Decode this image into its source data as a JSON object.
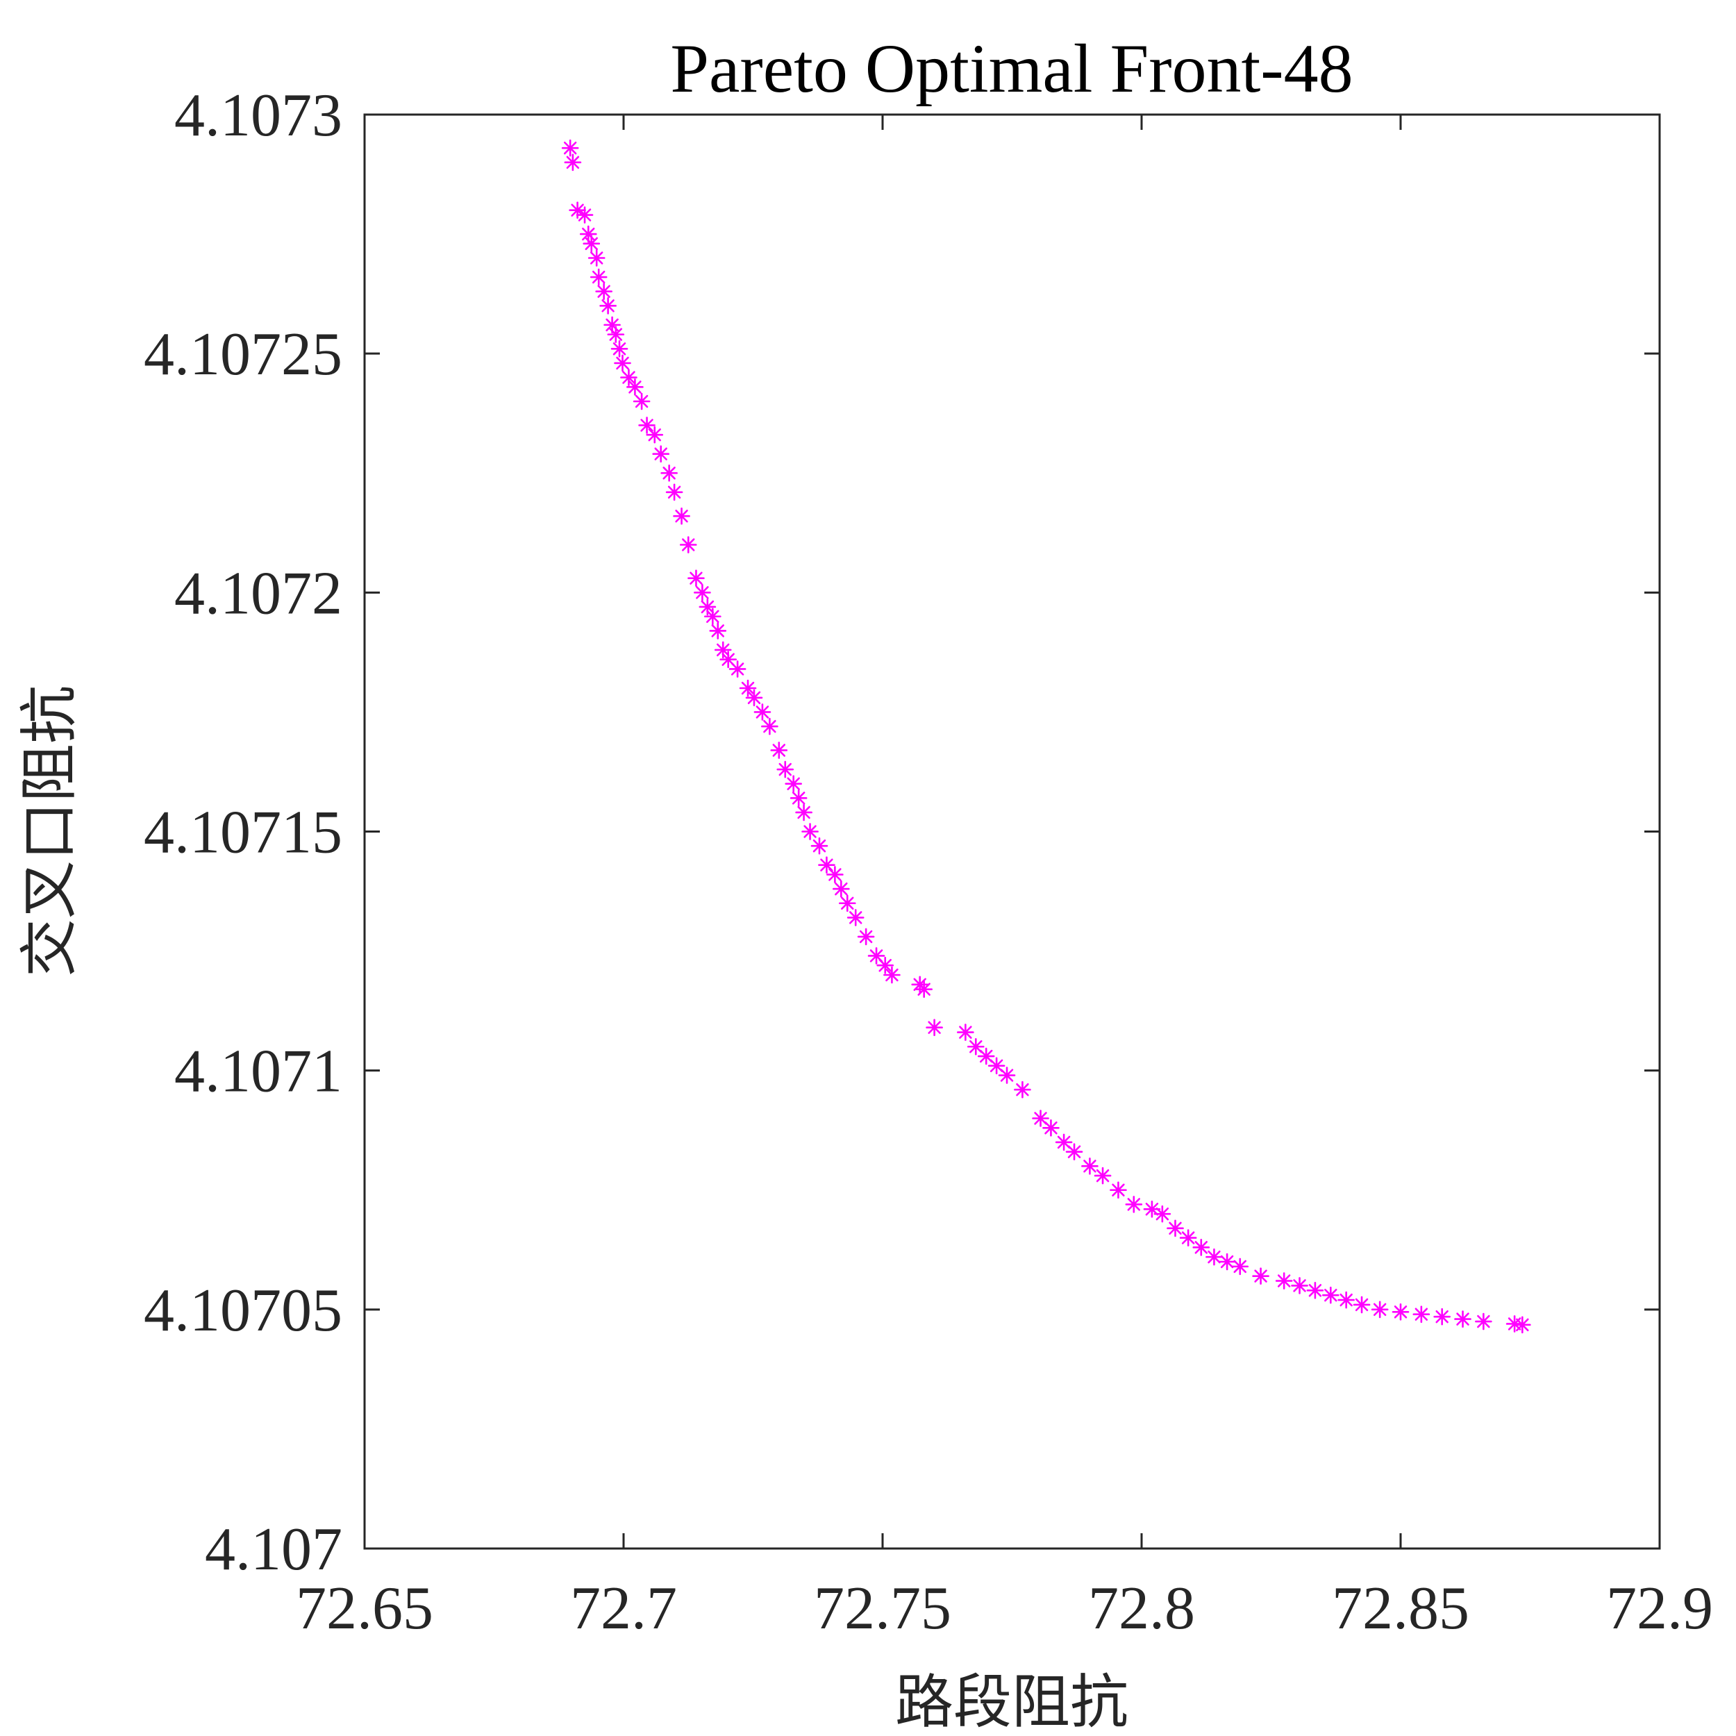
{
  "chart_data": {
    "type": "scatter",
    "title": "Pareto Optimal Front-48",
    "xlabel": "路段阻抗",
    "ylabel": "交叉口阻抗",
    "xlim": [
      72.65,
      72.9
    ],
    "ylim": [
      4.107,
      4.1073
    ],
    "xticks": [
      "72.65",
      "72.7",
      "72.75",
      "72.8",
      "72.85",
      "72.9"
    ],
    "yticks": [
      "4.107",
      "4.10705",
      "4.1071",
      "4.10715",
      "4.1072",
      "4.10725",
      "4.1073"
    ],
    "grid": false,
    "marker": "asterisk",
    "marker_color": "#ff00ff",
    "series": [
      {
        "x": [
          72.6897,
          72.6902,
          72.6911,
          72.6925,
          72.6932,
          72.6938,
          72.6948,
          72.6952,
          72.6962,
          72.697,
          72.6978,
          72.6985,
          72.6992,
          72.6998,
          72.701,
          72.7022,
          72.7035,
          72.7045,
          72.706,
          72.7072,
          72.7088,
          72.7098,
          72.7112,
          72.7125,
          72.714,
          72.7152,
          72.7162,
          72.7172,
          72.7182,
          72.7192,
          72.7202,
          72.722,
          72.724,
          72.7252,
          72.7268,
          72.7282,
          72.73,
          72.7312,
          72.7328,
          72.7338,
          72.7348,
          72.736,
          72.7378,
          72.7392,
          72.7408,
          72.742,
          72.7432,
          72.7448,
          72.7468,
          72.7488,
          72.7505,
          72.7518,
          72.7572,
          72.758,
          72.76,
          72.766,
          72.768,
          72.77,
          72.772,
          72.774,
          72.777,
          72.7805,
          72.7825,
          72.785,
          72.787,
          72.79,
          72.7925,
          72.7955,
          72.7985,
          72.802,
          72.804,
          72.8065,
          72.809,
          72.8115,
          72.814,
          72.8165,
          72.819,
          72.823,
          72.8275,
          72.8305,
          72.8335,
          72.8365,
          72.8395,
          72.8425,
          72.846,
          72.85,
          72.854,
          72.858,
          72.862,
          72.866,
          72.872,
          72.8735
        ],
        "y": [
          4.107293,
          4.10729,
          4.10728,
          4.107279,
          4.107275,
          4.107273,
          4.10727,
          4.107266,
          4.107263,
          4.10726,
          4.107256,
          4.107254,
          4.107251,
          4.107248,
          4.107245,
          4.107243,
          4.10724,
          4.107235,
          4.107233,
          4.107229,
          4.107225,
          4.107221,
          4.107216,
          4.10721,
          4.107203,
          4.1072,
          4.107197,
          4.107195,
          4.107192,
          4.107188,
          4.107186,
          4.107184,
          4.10718,
          4.107178,
          4.107175,
          4.107172,
          4.107167,
          4.107163,
          4.10716,
          4.107157,
          4.107154,
          4.10715,
          4.107147,
          4.107143,
          4.107141,
          4.107138,
          4.107135,
          4.107132,
          4.107128,
          4.107124,
          4.107122,
          4.10712,
          4.107118,
          4.107117,
          4.107109,
          4.107108,
          4.107105,
          4.107103,
          4.107101,
          4.107099,
          4.107096,
          4.10709,
          4.107088,
          4.107085,
          4.107083,
          4.10708,
          4.107078,
          4.107075,
          4.107072,
          4.107071,
          4.10707,
          4.107067,
          4.107065,
          4.107063,
          4.107061,
          4.10706,
          4.107059,
          4.107057,
          4.107056,
          4.107055,
          4.107054,
          4.107053,
          4.107052,
          4.107051,
          4.10705,
          4.1070495,
          4.107049,
          4.1070485,
          4.107048,
          4.1070475,
          4.107047,
          4.1070468
        ]
      }
    ]
  }
}
